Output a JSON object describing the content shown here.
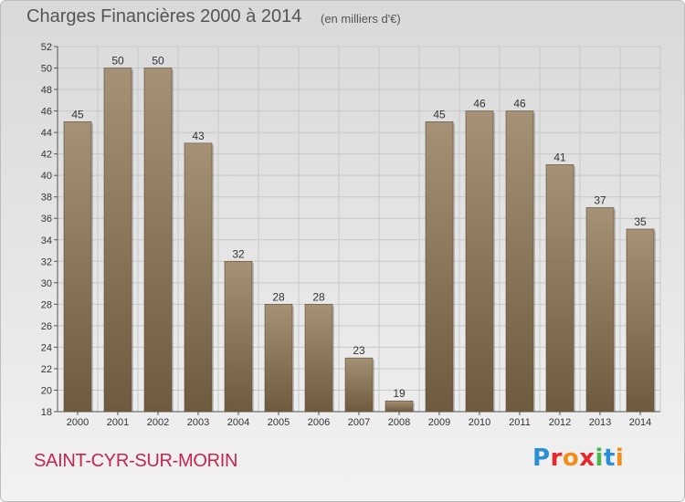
{
  "title": "Charges Financières 2000 à 2014",
  "subtitle": "(en milliers d'€)",
  "commune": "SAINT-CYR-SUR-MORIN",
  "logo": {
    "text": "Proxiti",
    "colors": [
      "#2a8fd6",
      "#e8262b",
      "#f28c1a",
      "#e8262b",
      "#49b749",
      "#2a8fd6",
      "#f28c1a"
    ]
  },
  "colors": {
    "bar_top": "#a59276",
    "bar_bottom": "#6e5a3f",
    "commune": "#c4264f"
  },
  "chart_data": {
    "type": "bar",
    "title": "Charges Financières 2000 à 2014",
    "subtitle": "(en milliers d'€)",
    "categories": [
      "2000",
      "2001",
      "2002",
      "2003",
      "2004",
      "2005",
      "2006",
      "2007",
      "2008",
      "2009",
      "2010",
      "2011",
      "2012",
      "2013",
      "2014"
    ],
    "values": [
      45,
      50,
      50,
      43,
      32,
      28,
      28,
      23,
      19,
      45,
      46,
      46,
      41,
      37,
      35
    ],
    "ylim": [
      18,
      52
    ],
    "yticks": [
      18,
      20,
      22,
      24,
      26,
      28,
      30,
      32,
      34,
      36,
      38,
      40,
      42,
      44,
      46,
      48,
      50,
      52
    ],
    "xlabel": "",
    "ylabel": "",
    "grid": true
  }
}
